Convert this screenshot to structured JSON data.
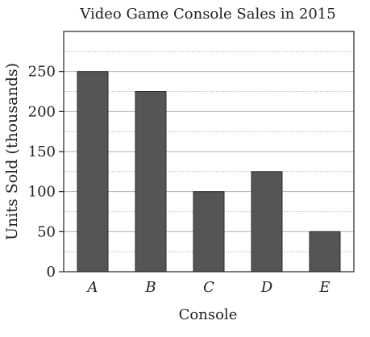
{
  "chart_data": {
    "type": "bar",
    "title": "Video Game Console Sales in 2015",
    "xlabel": "Console",
    "ylabel": "Units Sold (thousands)",
    "categories": [
      "A",
      "B",
      "C",
      "D",
      "E"
    ],
    "values": [
      250,
      225,
      100,
      125,
      50
    ],
    "ylim": [
      0,
      300
    ],
    "yticks": [
      0,
      50,
      100,
      150,
      200,
      250
    ],
    "grid": true,
    "legend": "none",
    "colors": {
      "bar_fill": "#555555",
      "bar_stroke": "#2a2a2a",
      "grid": "#b0b0b0",
      "axis": "#222222"
    }
  }
}
